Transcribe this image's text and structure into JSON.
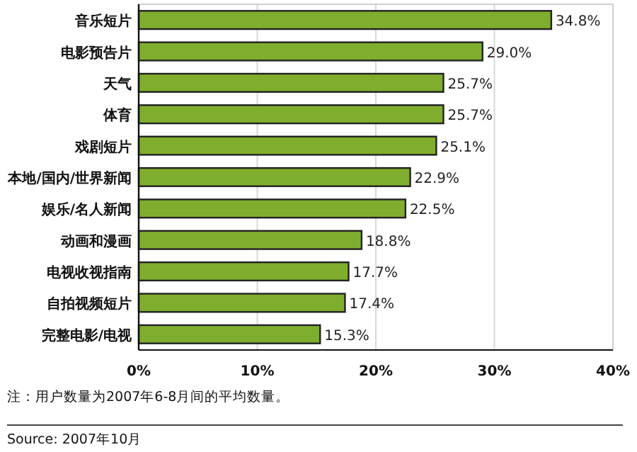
{
  "chart_data": {
    "type": "bar",
    "orientation": "horizontal",
    "categories": [
      "音乐短片",
      "电影预告片",
      "天气",
      "体育",
      "戏剧短片",
      "本地/国内/世界新闻",
      "娱乐/名人新闻",
      "动画和漫画",
      "电视收视指南",
      "自拍视频短片",
      "完整电影/电视"
    ],
    "values": [
      34.8,
      29.0,
      25.7,
      25.7,
      25.1,
      22.9,
      22.5,
      18.8,
      17.7,
      17.4,
      15.3
    ],
    "value_labels": [
      "34.8%",
      "29.0%",
      "25.7%",
      "25.7%",
      "25.1%",
      "22.9%",
      "22.5%",
      "18.8%",
      "17.7%",
      "17.4%",
      "15.3%"
    ],
    "color": "#7fae2e",
    "xlim": [
      0,
      40
    ],
    "xticks": [
      {
        "value": 0,
        "label": "0%"
      },
      {
        "value": 10,
        "label": "10%"
      },
      {
        "value": 20,
        "label": "20%"
      },
      {
        "value": 30,
        "label": "30%"
      },
      {
        "value": 40,
        "label": "40%"
      }
    ],
    "grid": "x",
    "annotations": [
      "注：用户数量为2007年6-8月间的平均数量。",
      "Source: 2007年10月"
    ]
  }
}
